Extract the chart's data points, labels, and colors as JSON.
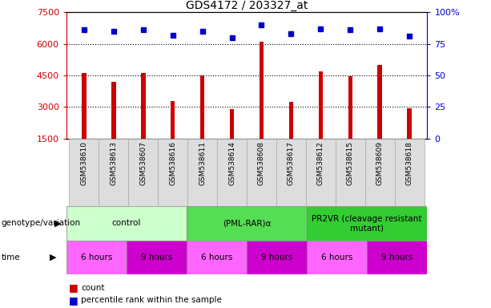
{
  "title": "GDS4172 / 203327_at",
  "samples": [
    "GSM538610",
    "GSM538613",
    "GSM538607",
    "GSM538616",
    "GSM538611",
    "GSM538614",
    "GSM538608",
    "GSM538617",
    "GSM538612",
    "GSM538615",
    "GSM538609",
    "GSM538618"
  ],
  "counts": [
    4600,
    4200,
    4600,
    3300,
    4500,
    2900,
    6100,
    3250,
    4700,
    4450,
    5000,
    2950
  ],
  "percentile_ranks": [
    86,
    85,
    86,
    82,
    85,
    80,
    90,
    83,
    87,
    86,
    87,
    81
  ],
  "ylim_left": [
    1500,
    7500
  ],
  "ylim_right": [
    0,
    100
  ],
  "yticks_left": [
    1500,
    3000,
    4500,
    6000,
    7500
  ],
  "yticks_right": [
    0,
    25,
    50,
    75,
    100
  ],
  "bar_color": "#cc0000",
  "dot_color": "#0000cc",
  "bg_color": "#ffffff",
  "title_fontsize": 10,
  "bar_width": 0.15,
  "groups": [
    {
      "label": "control",
      "start": 0,
      "end": 4,
      "color": "#ccffcc"
    },
    {
      "label": "(PML-RAR)α",
      "start": 4,
      "end": 8,
      "color": "#55dd55"
    },
    {
      "label": "PR2VR (cleavage resistant\nmutant)",
      "start": 8,
      "end": 12,
      "color": "#33cc33"
    }
  ],
  "time_groups": [
    {
      "label": "6 hours",
      "start": 0,
      "end": 2,
      "color": "#ff66ff"
    },
    {
      "label": "9 hours",
      "start": 2,
      "end": 4,
      "color": "#cc00cc"
    },
    {
      "label": "6 hours",
      "start": 4,
      "end": 6,
      "color": "#ff66ff"
    },
    {
      "label": "9 hours",
      "start": 6,
      "end": 8,
      "color": "#cc00cc"
    },
    {
      "label": "6 hours",
      "start": 8,
      "end": 10,
      "color": "#ff66ff"
    },
    {
      "label": "9 hours",
      "start": 10,
      "end": 12,
      "color": "#cc00cc"
    }
  ],
  "left_axis_color": "#cc0000",
  "right_axis_color": "#0000cc",
  "label_row1": "genotype/variation",
  "label_row2": "time",
  "legend_count_label": "count",
  "legend_pct_label": "percentile rank within the sample",
  "grid_yticks": [
    3000,
    4500,
    6000
  ],
  "sample_cell_color": "#dddddd",
  "sample_cell_edge": "#aaaaaa"
}
